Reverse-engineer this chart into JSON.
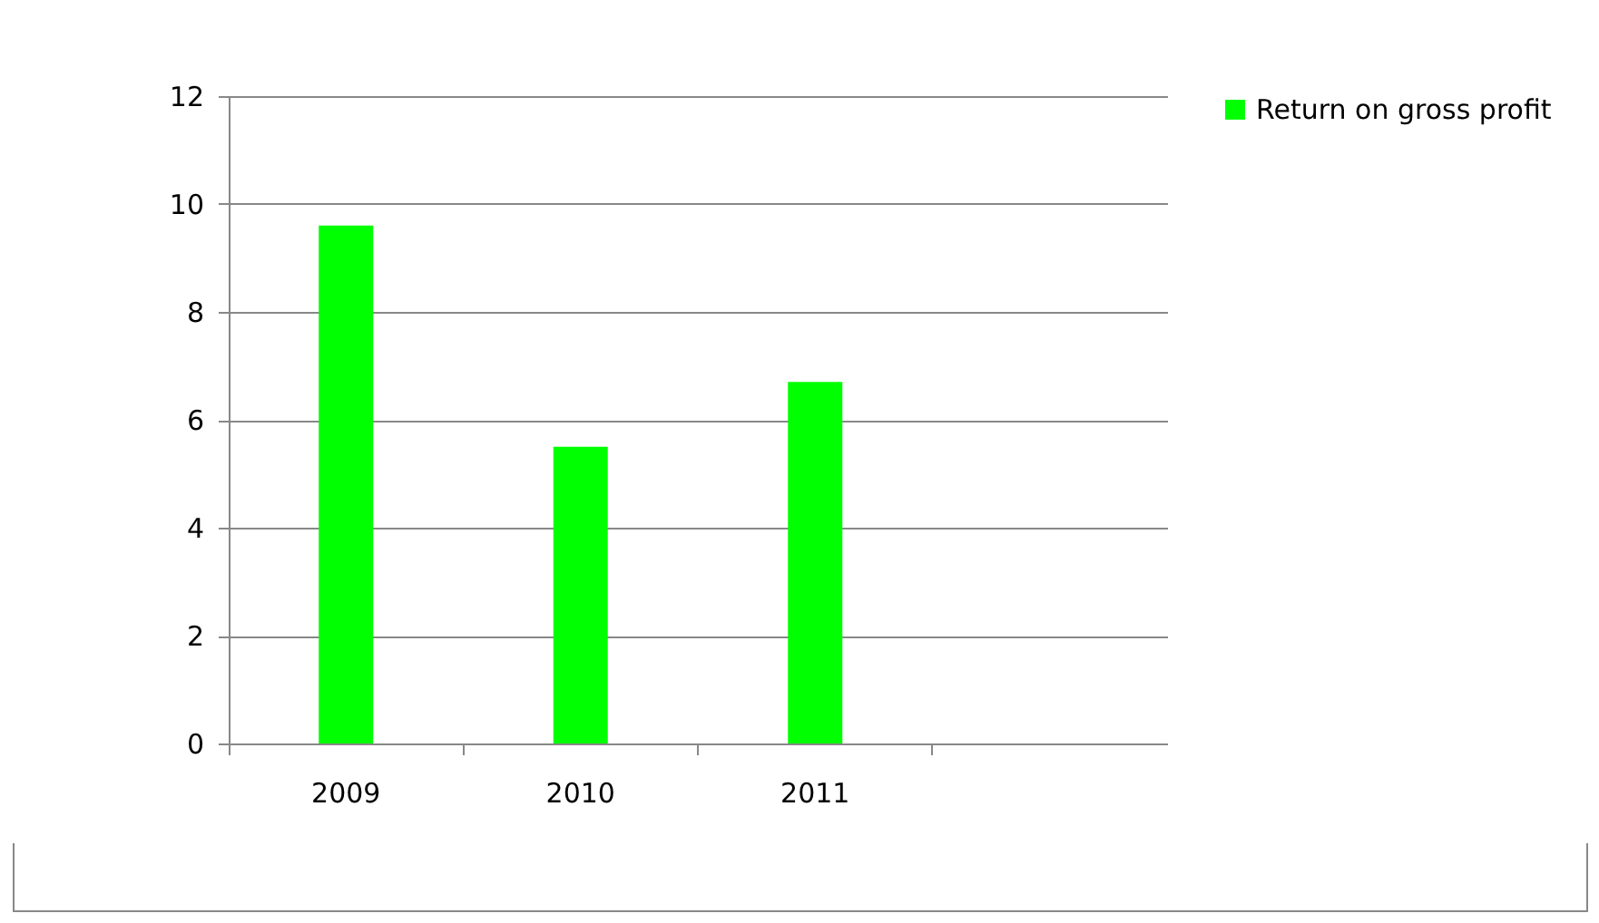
{
  "chart_data": {
    "type": "bar",
    "categories": [
      "2009",
      "2010",
      "2011",
      null
    ],
    "series": [
      {
        "name": "Return on gross profit",
        "color": "#00ff00",
        "values": [
          9.6,
          5.5,
          6.7,
          null
        ]
      }
    ],
    "ylim": [
      0,
      12
    ],
    "yticks": [
      0,
      2,
      4,
      6,
      8,
      10,
      12
    ],
    "grid": "y",
    "legend": "right"
  }
}
